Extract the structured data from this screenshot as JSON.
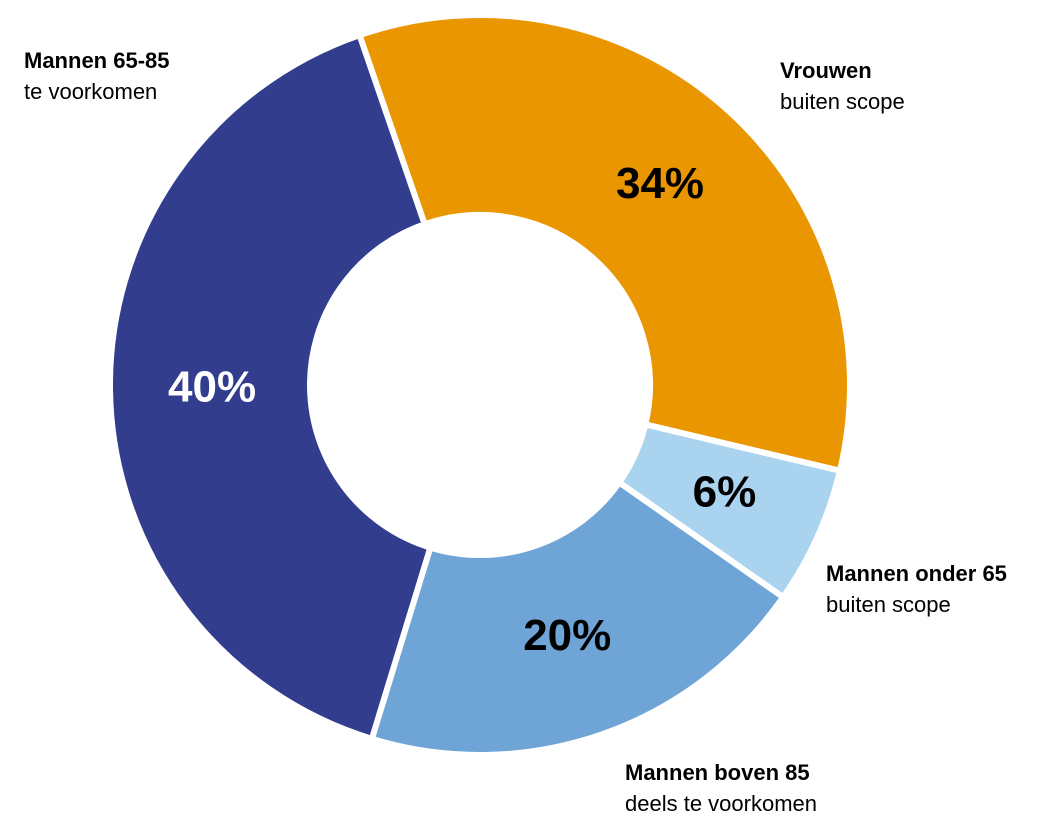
{
  "chart_data": {
    "type": "pie",
    "categories": [
      "Vrouwen",
      "Mannen onder 65",
      "Mannen boven 85",
      "Mannen 65-85"
    ],
    "descriptions": [
      "buiten scope",
      "buiten scope",
      "deels te voorkomen",
      "te voorkomen"
    ],
    "values": [
      34,
      6,
      20,
      40
    ],
    "value_labels": [
      "34%",
      "6%",
      "20%",
      "40%"
    ],
    "colors": [
      "#e99600",
      "#a9d3ee",
      "#6ea4d6",
      "#323d8e"
    ],
    "label_colors": [
      "#000000",
      "#000000",
      "#000000",
      "#ffffff"
    ]
  }
}
